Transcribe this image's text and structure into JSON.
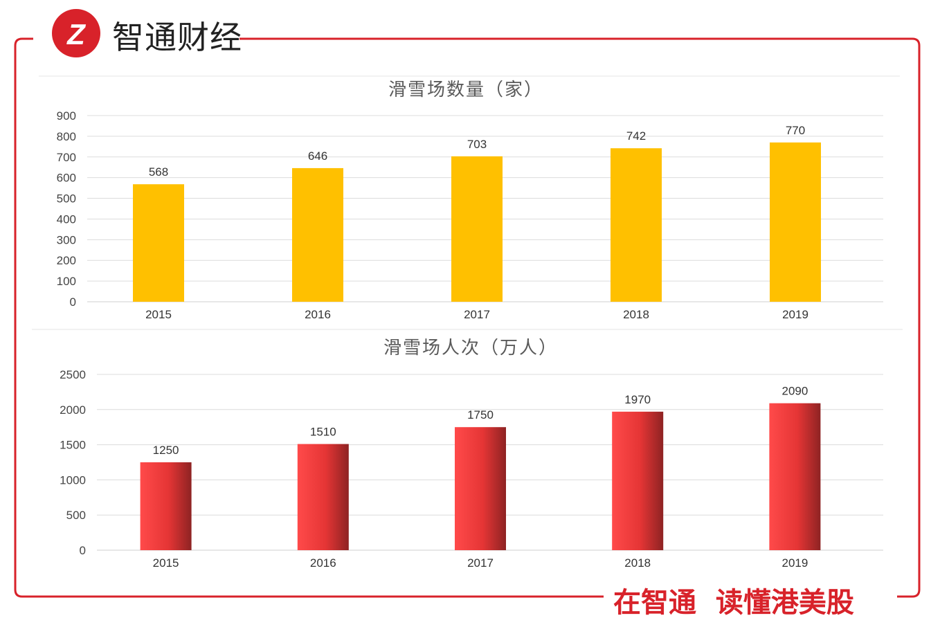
{
  "brand": {
    "name": "智通财经",
    "slogan": "在智通  读懂港美股",
    "accent_color": "#d8222a"
  },
  "chart_data": [
    {
      "type": "bar",
      "title": "滑雪场数量（家）",
      "categories": [
        "2015",
        "2016",
        "2017",
        "2018",
        "2019"
      ],
      "values": [
        568,
        646,
        703,
        742,
        770
      ],
      "yticks": [
        0,
        100,
        200,
        300,
        400,
        500,
        600,
        700,
        800,
        900
      ],
      "ylim": [
        0,
        900
      ],
      "grid": true,
      "color": "#ffc000"
    },
    {
      "type": "bar",
      "title": "滑雪场人次（万人）",
      "categories": [
        "2015",
        "2016",
        "2017",
        "2018",
        "2019"
      ],
      "values": [
        1250,
        1510,
        1750,
        1970,
        2090
      ],
      "yticks": [
        0,
        500,
        1000,
        1500,
        2000,
        2500
      ],
      "ylim": [
        0,
        2500
      ],
      "grid": true,
      "color": "#f03c3c"
    }
  ]
}
